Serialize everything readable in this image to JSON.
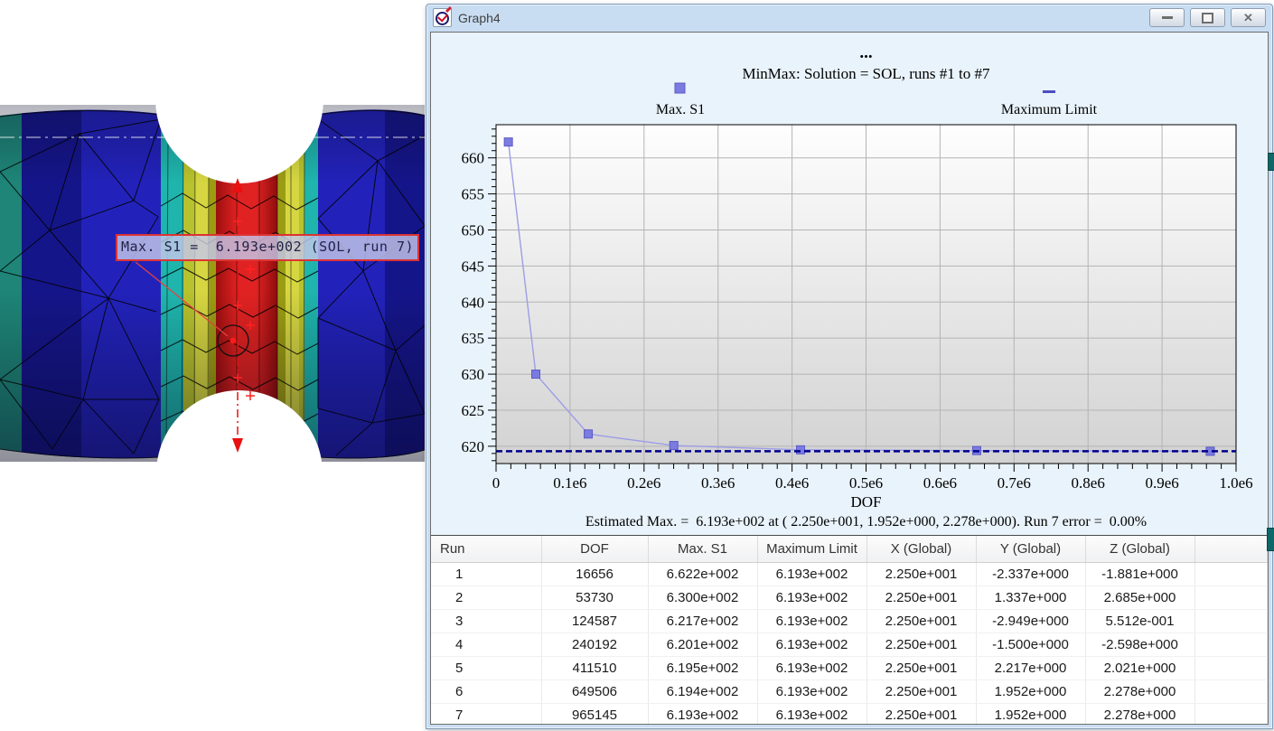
{
  "fea": {
    "max_label": "Max. S1 =  6.193e+002 (SOL, run 7)",
    "palette": {
      "teal_band": "#1e8578",
      "navy_band": "#15158a",
      "blue_band": "#2222bb",
      "cyan_band": "#1fb5ad",
      "yellowgreen_band": "#b8c22e",
      "yellow_band": "#d6d642",
      "olive_band": "#9c9c14",
      "red_center": "#e02020",
      "annotation_red": "#e81010"
    }
  },
  "window": {
    "title": "Graph4",
    "icon": "chart-app-icon",
    "controls": [
      "minimize",
      "restore",
      "close"
    ],
    "close_glyph": "✕"
  },
  "chart_data": {
    "type": "line",
    "overtitle": "...",
    "title": "MinMax: Solution = SOL, runs #1 to #7",
    "xlabel": "DOF",
    "xlim": [
      0,
      1000000
    ],
    "ylim": [
      617.6,
      664.6
    ],
    "xticks": [
      0,
      100000,
      200000,
      300000,
      400000,
      500000,
      600000,
      700000,
      800000,
      900000,
      1000000
    ],
    "xtick_labels": [
      "0",
      "0.1e6",
      "0.2e6",
      "0.3e6",
      "0.4e6",
      "0.5e6",
      "0.6e6",
      "0.7e6",
      "0.8e6",
      "0.9e6",
      "1.0e6"
    ],
    "yticks": [
      620,
      625,
      630,
      635,
      640,
      645,
      650,
      655,
      660
    ],
    "x_minor_step": 20000,
    "y_minor_step": 1,
    "grid": true,
    "legend_position": "top",
    "series": [
      {
        "name": "Max. S1",
        "type": "line+marker",
        "marker": "square",
        "marker_color": "#7b7be0",
        "marker_edge": "#5a5ac8",
        "line_color": "#9d9de8",
        "x": [
          16656,
          53730,
          124587,
          240192,
          411510,
          649506,
          965145
        ],
        "y": [
          662.2,
          630.0,
          621.7,
          620.1,
          619.5,
          619.4,
          619.3
        ]
      },
      {
        "name": "Maximum Limit",
        "type": "hline",
        "style": "dashed",
        "color": "#00008b",
        "y": 619.3
      }
    ],
    "footer": "Estimated Max. =  6.193e+002 at ( 2.250e+001, 1.952e+000, 2.278e+000). Run 7 error =  0.00%"
  },
  "table": {
    "columns": [
      "Run",
      "DOF",
      "Max. S1",
      "Maximum Limit",
      "X (Global)",
      "Y (Global)",
      "Z (Global)",
      ""
    ],
    "rows": [
      [
        "1",
        "16656",
        "6.622e+002",
        "6.193e+002",
        "2.250e+001",
        "-2.337e+000",
        "-1.881e+000",
        ""
      ],
      [
        "2",
        "53730",
        "6.300e+002",
        "6.193e+002",
        "2.250e+001",
        "1.337e+000",
        "2.685e+000",
        ""
      ],
      [
        "3",
        "124587",
        "6.217e+002",
        "6.193e+002",
        "2.250e+001",
        "-2.949e+000",
        "5.512e-001",
        ""
      ],
      [
        "4",
        "240192",
        "6.201e+002",
        "6.193e+002",
        "2.250e+001",
        "-1.500e+000",
        "-2.598e+000",
        ""
      ],
      [
        "5",
        "411510",
        "6.195e+002",
        "6.193e+002",
        "2.250e+001",
        "2.217e+000",
        "2.021e+000",
        ""
      ],
      [
        "6",
        "649506",
        "6.194e+002",
        "6.193e+002",
        "2.250e+001",
        "1.952e+000",
        "2.278e+000",
        ""
      ],
      [
        "7",
        "965145",
        "6.193e+002",
        "6.193e+002",
        "2.250e+001",
        "1.952e+000",
        "2.278e+000",
        ""
      ]
    ]
  }
}
